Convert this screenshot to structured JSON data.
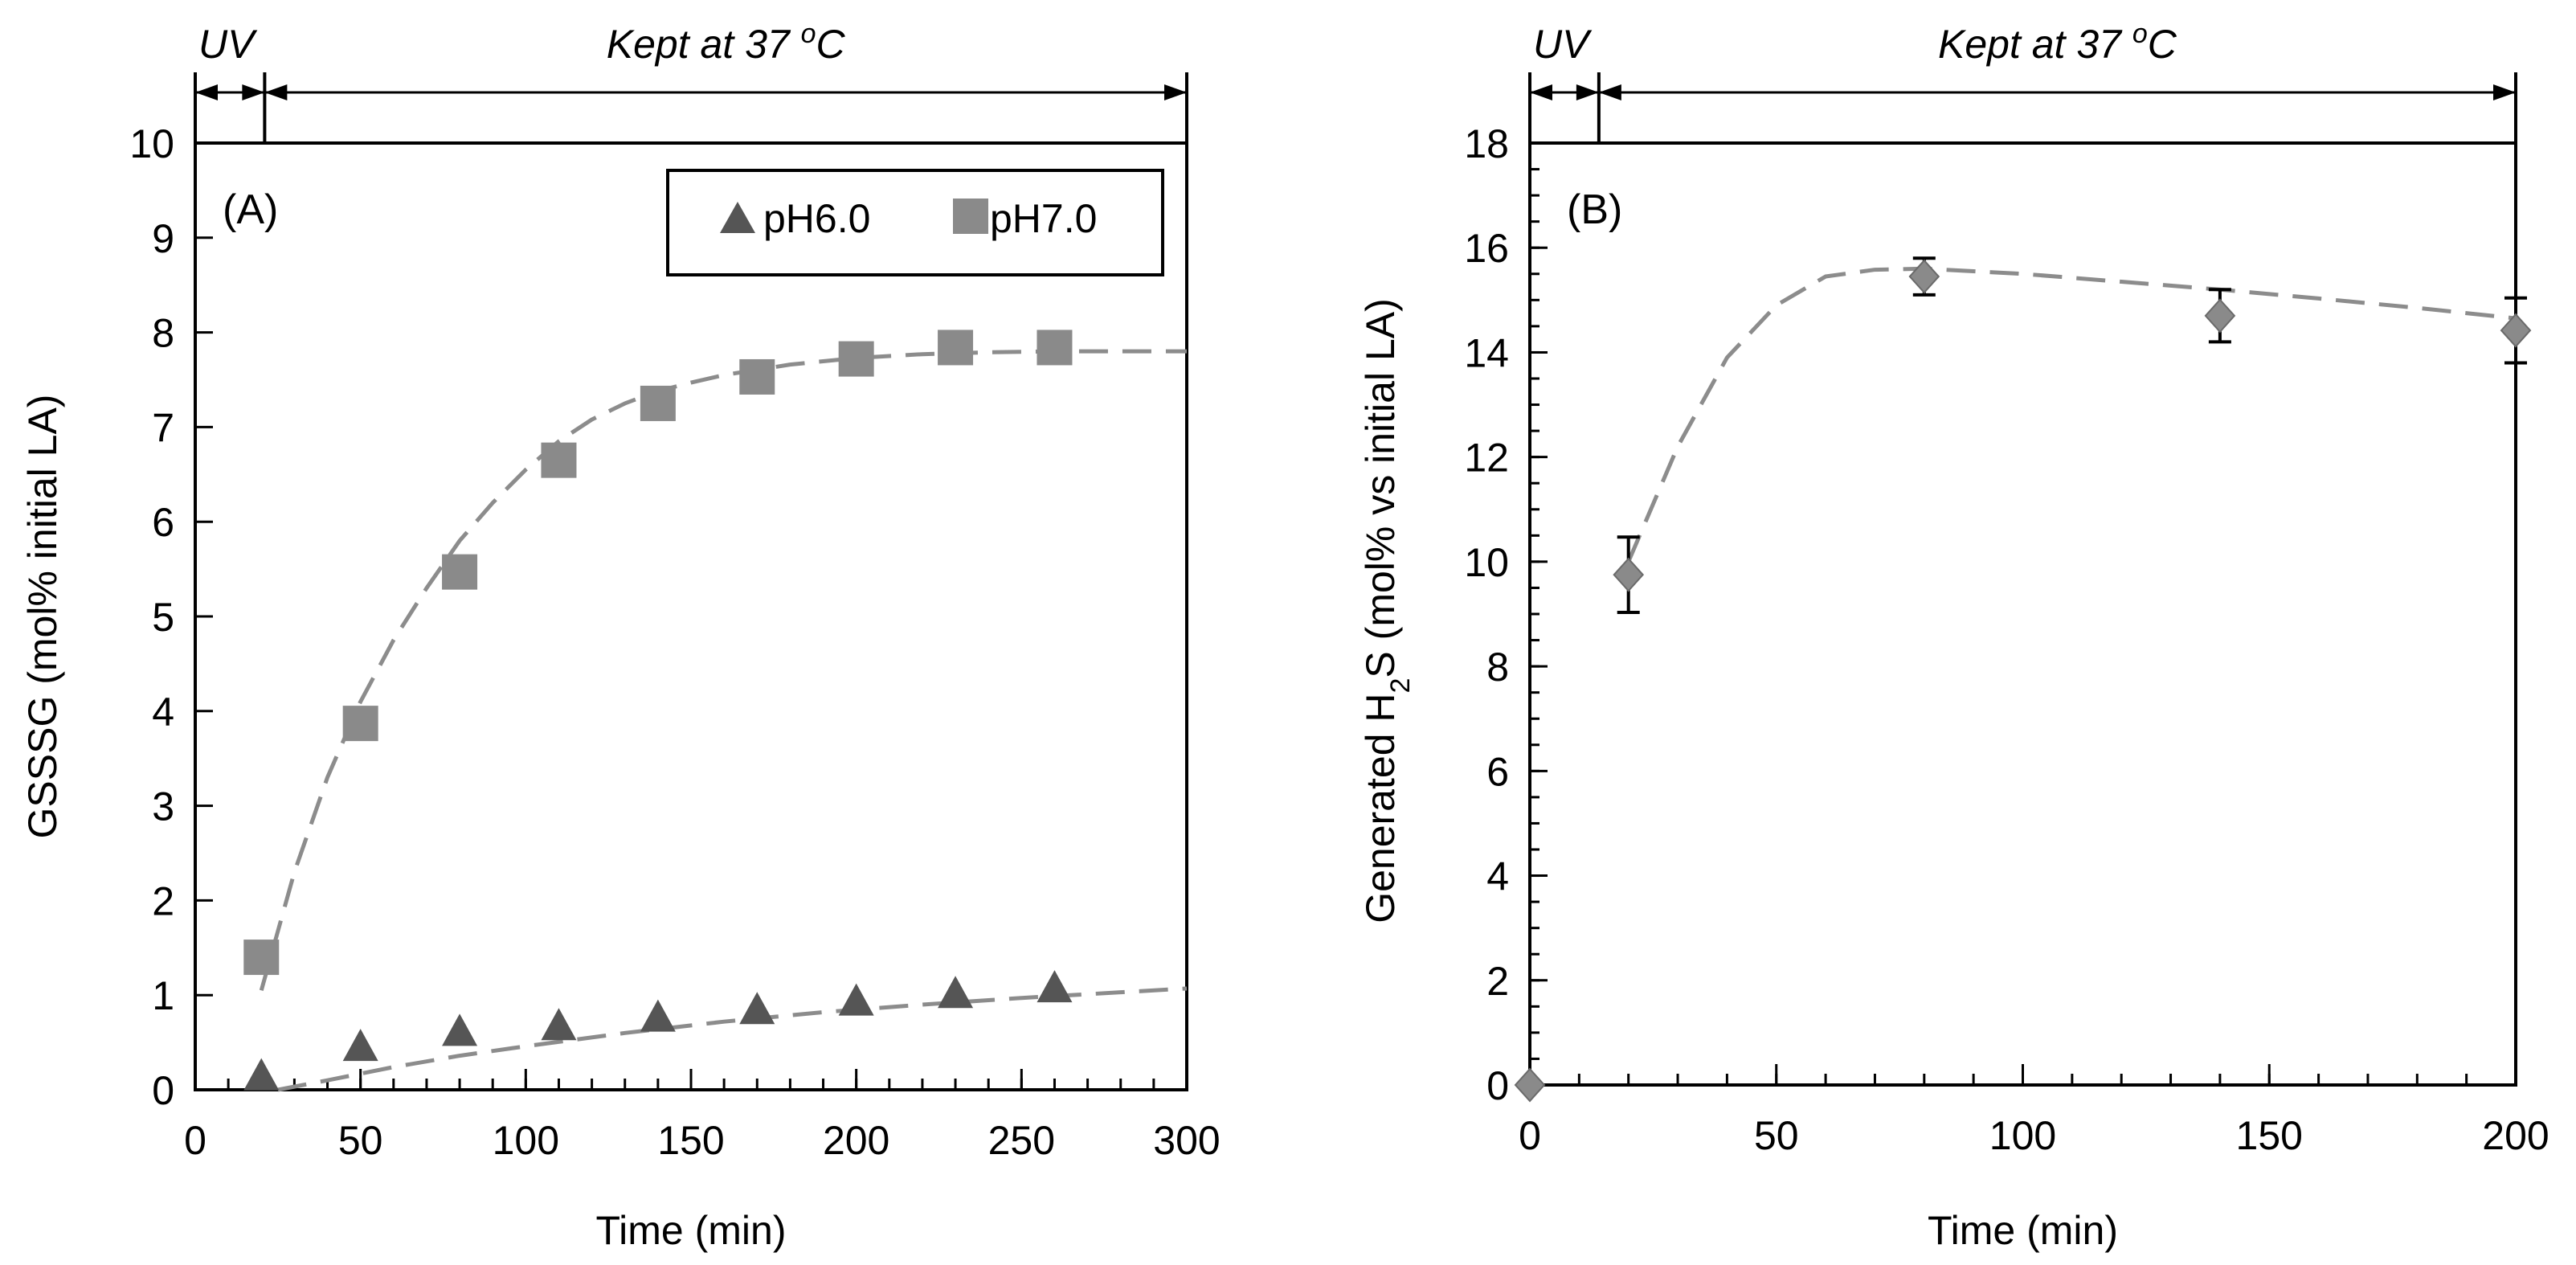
{
  "colors": {
    "axis": "#000000",
    "marker_dark": "#555555",
    "marker_light": "#8a8a8a",
    "fit_line": "#8c8c8c",
    "background": "#ffffff"
  },
  "chart_data": [
    {
      "type": "scatter",
      "panel_label": "(A)",
      "xlabel": "Time (min)",
      "ylabel": "GSSSG (mol% initial LA)",
      "xlim": [
        0,
        300
      ],
      "ylim": [
        0,
        10
      ],
      "x_ticks": [
        0,
        50,
        100,
        150,
        200,
        250,
        300
      ],
      "y_ticks": [
        0,
        1,
        2,
        3,
        4,
        5,
        6,
        7,
        8,
        9,
        10
      ],
      "x_tick_labels": [
        "0",
        "50",
        "100",
        "150",
        "200",
        "250",
        "300"
      ],
      "y_tick_labels": [
        "0",
        "1",
        "2",
        "3",
        "4",
        "5",
        "6",
        "7",
        "8",
        "9",
        "10"
      ],
      "phase_uv": {
        "label": "UV",
        "start": 0,
        "end": 21
      },
      "phase_kept": {
        "label": "Kept at 37 ",
        "sup": "o",
        "unit": "C",
        "start": 21,
        "end": 300
      },
      "legend": {
        "position": "top-right",
        "entries": [
          "pH6.0",
          "pH7.0"
        ]
      },
      "series": [
        {
          "name": "pH6.0",
          "marker": "triangle",
          "x": [
            20,
            50,
            80,
            110,
            140,
            170,
            200,
            230,
            260
          ],
          "y": [
            0.13,
            0.44,
            0.6,
            0.66,
            0.75,
            0.83,
            0.92,
            1.0,
            1.06
          ],
          "fit": {
            "x": [
              25,
              40,
              60,
              80,
              100,
              130,
              160,
              190,
              220,
              250,
              280,
              300
            ],
            "y": [
              0.0,
              0.1,
              0.24,
              0.36,
              0.46,
              0.6,
              0.72,
              0.82,
              0.9,
              0.97,
              1.03,
              1.07
            ]
          }
        },
        {
          "name": "pH7.0",
          "marker": "square",
          "x": [
            20,
            50,
            80,
            110,
            140,
            170,
            200,
            230,
            260
          ],
          "y": [
            1.4,
            3.87,
            5.47,
            6.65,
            7.25,
            7.53,
            7.72,
            7.84,
            7.84
          ],
          "fit": {
            "x": [
              20,
              30,
              40,
              50,
              60,
              70,
              80,
              90,
              100,
              110,
              120,
              130,
              140,
              150,
              160,
              180,
              200,
              220,
              240,
              260,
              280,
              300
            ],
            "y": [
              1.05,
              2.3,
              3.3,
              4.1,
              4.75,
              5.3,
              5.8,
              6.2,
              6.55,
              6.85,
              7.08,
              7.25,
              7.38,
              7.47,
              7.55,
              7.66,
              7.73,
              7.77,
              7.79,
              7.8,
              7.8,
              7.8
            ]
          }
        }
      ]
    },
    {
      "type": "scatter",
      "panel_label": "(B)",
      "xlabel": "Time (min)",
      "ylabel_parts": [
        "Generated H",
        "2",
        "S (mol% vs initial LA)"
      ],
      "xlim": [
        0,
        200
      ],
      "ylim": [
        0,
        18
      ],
      "x_ticks": [
        0,
        50,
        100,
        150,
        200
      ],
      "y_ticks": [
        0,
        2,
        4,
        6,
        8,
        10,
        12,
        14,
        16,
        18
      ],
      "x_tick_labels": [
        "0",
        "50",
        "100",
        "150",
        "200"
      ],
      "y_tick_labels": [
        "0",
        "2",
        "4",
        "6",
        "8",
        "10",
        "12",
        "14",
        "16",
        "18"
      ],
      "phase_uv": {
        "label": "UV",
        "start": 0,
        "end": 14
      },
      "phase_kept": {
        "label": "Kept at 37 ",
        "sup": "o",
        "unit": "C",
        "start": 14,
        "end": 200
      },
      "series": [
        {
          "name": "H2S",
          "marker": "diamond",
          "x": [
            0,
            20,
            80,
            140,
            200
          ],
          "y": [
            0,
            9.75,
            15.45,
            14.7,
            14.42
          ],
          "yerr": [
            0,
            0.72,
            0.35,
            0.5,
            0.62
          ],
          "fit": {
            "x": [
              20,
              30,
              40,
              50,
              60,
              70,
              80,
              100,
              120,
              140,
              160,
              180,
              200
            ],
            "y": [
              10.0,
              12.2,
              13.9,
              14.9,
              15.45,
              15.58,
              15.6,
              15.5,
              15.35,
              15.2,
              15.03,
              14.85,
              14.65
            ]
          }
        }
      ]
    }
  ]
}
